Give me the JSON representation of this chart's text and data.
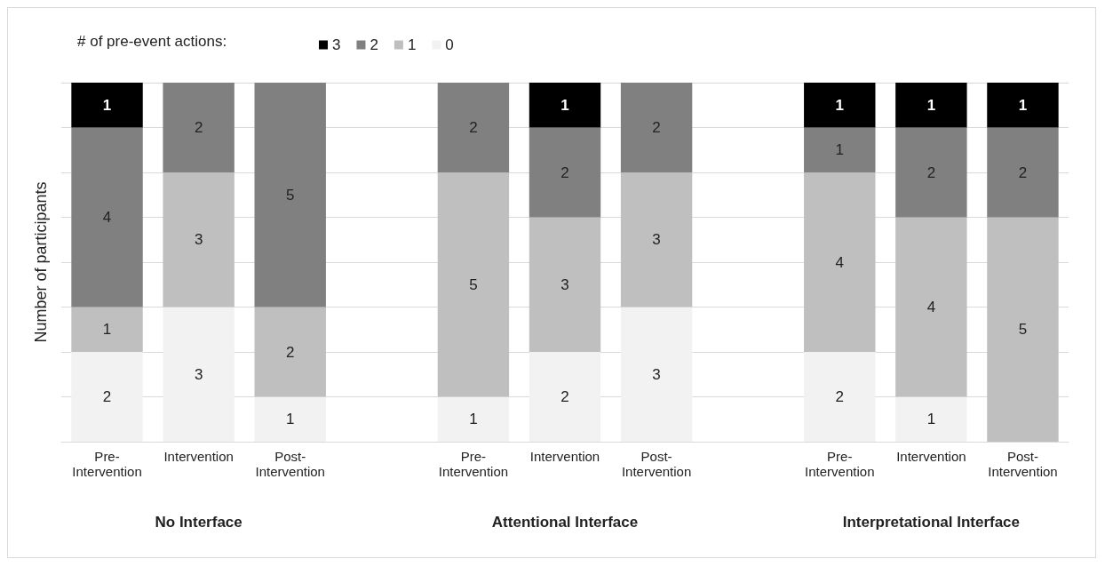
{
  "chart_data": {
    "type": "bar",
    "stacked": true,
    "ylabel": "Number of participants",
    "legend_title": "# of pre-event actions:",
    "legend": "top left",
    "categories": [
      "Pre-Intervention",
      "Intervention",
      "Post-Intervention",
      null,
      "Pre-Intervention",
      "Intervention",
      "Post-Intervention",
      null,
      "Pre-Intervention",
      "Intervention",
      "Post-Intervention"
    ],
    "annotations": [
      "No Interface",
      "Attentional Interface",
      "Interpretational Interface"
    ],
    "series": [
      {
        "name": "0",
        "color": "#f2f2f2",
        "values": [
          2,
          3,
          1,
          null,
          1,
          2,
          3,
          null,
          2,
          1,
          null
        ]
      },
      {
        "name": "1",
        "color": "#bfbfbf",
        "values": [
          1,
          3,
          2,
          null,
          5,
          3,
          3,
          null,
          4,
          4,
          5
        ]
      },
      {
        "name": "2",
        "color": "#808080",
        "values": [
          4,
          2,
          5,
          null,
          2,
          2,
          2,
          null,
          1,
          2,
          2
        ]
      },
      {
        "name": "3",
        "color": "#000000",
        "values": [
          1,
          null,
          null,
          null,
          null,
          1,
          null,
          null,
          1,
          1,
          1
        ]
      }
    ],
    "ylim": [
      0,
      8
    ],
    "yticks": [
      {
        "value": 0,
        "label": null
      },
      {
        "value": 1,
        "label": null
      },
      {
        "value": 2,
        "label": null
      },
      {
        "value": 3,
        "label": null
      },
      {
        "value": 4,
        "label": null
      },
      {
        "value": 5,
        "label": null
      },
      {
        "value": 6,
        "label": null
      },
      {
        "value": 7,
        "label": null
      },
      {
        "value": 8,
        "label": null
      }
    ],
    "tick_labels": "x",
    "grid": "y",
    "data_labels": true
  }
}
